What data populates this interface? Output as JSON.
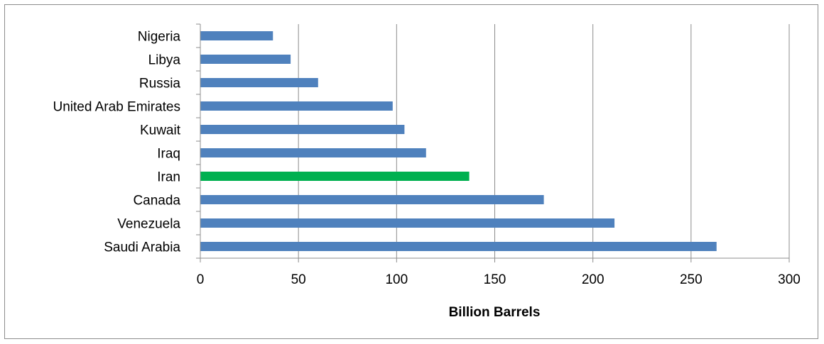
{
  "chart_data": {
    "type": "bar",
    "orientation": "horizontal",
    "categories": [
      "Saudi Arabia",
      "Venezuela",
      "Canada",
      "Iran",
      "Iraq",
      "Kuwait",
      "United Arab Emirates",
      "Russia",
      "Libya",
      "Nigeria"
    ],
    "values": [
      263,
      211,
      175,
      137,
      115,
      104,
      98,
      60,
      46,
      37
    ],
    "xlabel": "Billion Barrels",
    "xlim": [
      0,
      300
    ],
    "xticks": [
      0,
      50,
      100,
      150,
      200,
      250,
      300
    ],
    "grid": "vertical",
    "legend": "none",
    "colors": {
      "bar": "#4f81bd",
      "highlight": "#00b050",
      "grid": "#8c8c8c"
    },
    "highlight_category": "Iran"
  }
}
